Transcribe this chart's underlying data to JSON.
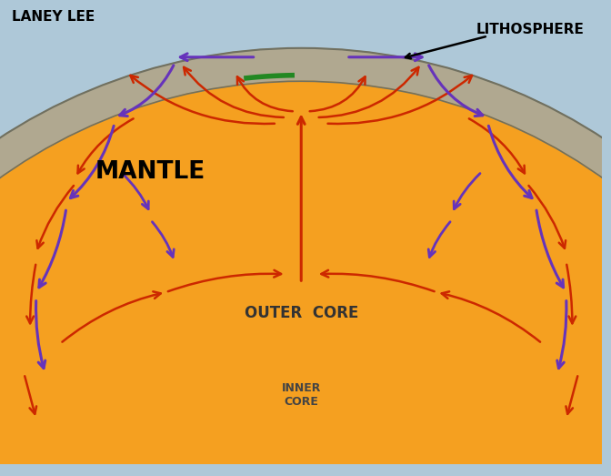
{
  "bg_color": "#aec8d8",
  "mantle_color": "#f5a020",
  "outer_core_color": "#c8c8c0",
  "inner_core_color": "#d8d8d0",
  "litho_color": "#b0a890",
  "litho_outline_color": "#707060",
  "title_text": "LANEY LEE",
  "label_mantle": "MANTLE",
  "label_outer_core": "OUTER  CORE",
  "label_inner_core": "INNER\nCORE",
  "label_lithosphere": "LITHOSPHERE",
  "red_color": "#cc2800",
  "blue_color": "#6633bb",
  "green_color": "#228822",
  "figsize": [
    6.72,
    5.23
  ],
  "dpi": 100
}
